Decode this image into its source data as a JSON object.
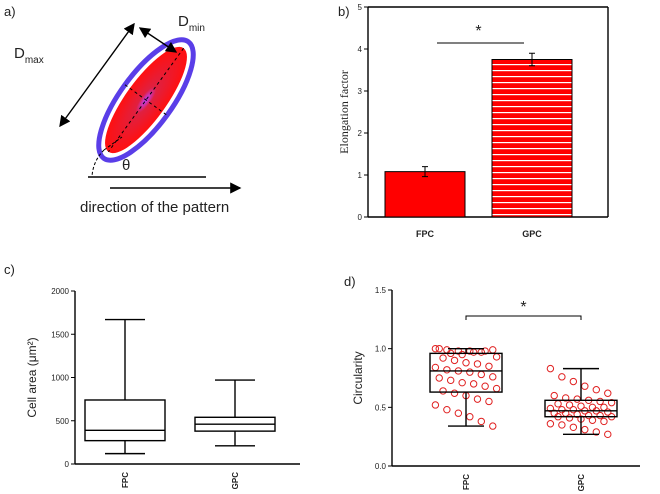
{
  "diagram": {
    "label": "a)",
    "dmax": "D",
    "dmax_sub": "max",
    "dmin": "D",
    "dmin_sub": "min",
    "angle": "θ",
    "caption": "direction of the pattern"
  },
  "chart_data": [
    {
      "type": "bar",
      "panel_label": "b)",
      "ylabel": "Elongation factor",
      "categories": [
        "FPC",
        "GPC"
      ],
      "values": [
        1.08,
        3.75
      ],
      "errors": [
        0.12,
        0.15
      ],
      "color": "#ff0000",
      "ylim": [
        0,
        5
      ],
      "yticks": [
        0,
        1,
        2,
        3,
        4,
        5
      ],
      "annotation": "*"
    },
    {
      "type": "box",
      "panel_label": "c)",
      "ylabel": "Cell area (μm²)",
      "categories": [
        "FPC",
        "GPC"
      ],
      "boxes": [
        {
          "min": 120,
          "q1": 270,
          "median": 390,
          "q3": 740,
          "max": 1670
        },
        {
          "min": 210,
          "q1": 380,
          "median": 460,
          "q3": 540,
          "max": 970
        }
      ],
      "ylim": [
        0,
        2000
      ],
      "yticks": [
        0,
        500,
        1000,
        1500,
        2000
      ]
    },
    {
      "type": "box",
      "panel_label": "d)",
      "ylabel": "Circularity",
      "categories": [
        "FPC",
        "GPC"
      ],
      "boxes": [
        {
          "min": 0.34,
          "q1": 0.63,
          "median": 0.81,
          "q3": 0.96,
          "max": 1.0
        },
        {
          "min": 0.27,
          "q1": 0.42,
          "median": 0.47,
          "q3": 0.56,
          "max": 0.83
        }
      ],
      "points": [
        [
          1.0,
          0.99,
          0.98,
          0.98,
          0.97,
          0.99,
          1.0,
          0.96,
          0.95,
          0.97,
          0.98,
          0.93,
          0.92,
          0.9,
          0.88,
          0.87,
          0.85,
          0.84,
          0.82,
          0.81,
          0.8,
          0.78,
          0.76,
          0.75,
          0.73,
          0.71,
          0.7,
          0.68,
          0.66,
          0.64,
          0.62,
          0.6,
          0.57,
          0.55,
          0.52,
          0.48,
          0.45,
          0.42,
          0.38,
          0.34
        ],
        [
          0.83,
          0.76,
          0.72,
          0.68,
          0.65,
          0.62,
          0.6,
          0.58,
          0.57,
          0.56,
          0.55,
          0.54,
          0.53,
          0.52,
          0.51,
          0.5,
          0.5,
          0.49,
          0.48,
          0.48,
          0.47,
          0.47,
          0.46,
          0.45,
          0.45,
          0.44,
          0.43,
          0.43,
          0.42,
          0.42,
          0.41,
          0.4,
          0.39,
          0.38,
          0.36,
          0.35,
          0.33,
          0.31,
          0.29,
          0.27
        ]
      ],
      "point_color": "#e02020",
      "ylim": [
        0,
        1.5
      ],
      "yticks": [
        {
          "value": 0,
          "label": "0.0"
        },
        0.5,
        {
          "value": 1,
          "label": "1.0"
        },
        1.5
      ],
      "annotation": "*"
    }
  ]
}
